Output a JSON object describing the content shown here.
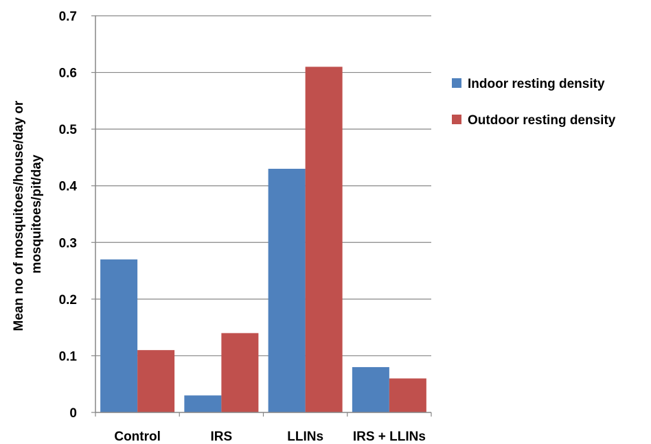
{
  "chart_data": {
    "type": "bar",
    "title": "",
    "xlabel": "",
    "ylabel_lines": [
      "Mean no of mosquitoes/house/day or",
      "mosquitoes/pit/day"
    ],
    "categories": [
      "Control",
      "IRS",
      "LLINs",
      "IRS + LLINs"
    ],
    "series": [
      {
        "name": "Indoor resting density",
        "color": "#4F81BD",
        "values": [
          0.27,
          0.03,
          0.43,
          0.08
        ]
      },
      {
        "name": "Outdoor resting density",
        "color": "#C0504D",
        "values": [
          0.11,
          0.14,
          0.61,
          0.06
        ]
      }
    ],
    "ylim": [
      0,
      0.7
    ],
    "yticks": [
      "0",
      "0.1",
      "0.2",
      "0.3",
      "0.4",
      "0.5",
      "0.6",
      "0.7"
    ],
    "grid": true,
    "legend": "right"
  }
}
